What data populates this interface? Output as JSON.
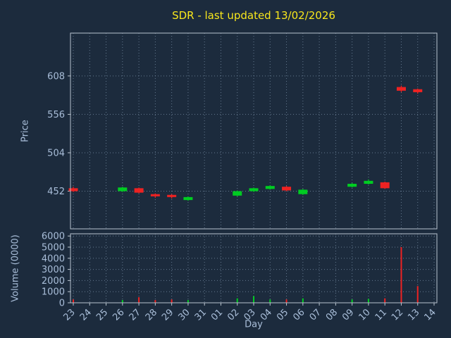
{
  "colors": {
    "background": "#1c2b3d",
    "title": "#f8e71c",
    "text": "#a9bed9",
    "grid": "#7d93ab",
    "spine": "#b9c3ce",
    "up": "#00cc22",
    "down": "#ee2222"
  },
  "chart_data": {
    "type": "candlestick",
    "title": "SDR - last updated 13/02/2026",
    "xlabel": "Day",
    "ylabel_price": "Price",
    "ylabel_volume": "Volume (0000)",
    "x_ticklabels": [
      "23",
      "24",
      "25",
      "26",
      "27",
      "28",
      "29",
      "30",
      "31",
      "01",
      "02",
      "03",
      "04",
      "05",
      "06",
      "07",
      "08",
      "09",
      "10",
      "11",
      "12",
      "13",
      "14"
    ],
    "price_ticks": [
      452,
      504,
      556,
      608
    ],
    "price_ylim": [
      401,
      666
    ],
    "volume_ticks": [
      0,
      1000,
      2000,
      3000,
      4000,
      5000,
      6000
    ],
    "volume_ylim": [
      0,
      6200
    ],
    "grid": true,
    "legend": "none",
    "candles": [
      {
        "day": "23",
        "open": 456,
        "high": 458,
        "low": 451,
        "close": 452,
        "volume": 300
      },
      {
        "day": "26",
        "open": 452,
        "high": 458,
        "low": 451,
        "close": 457,
        "volume": 250
      },
      {
        "day": "27",
        "open": 456,
        "high": 457,
        "low": 449,
        "close": 450,
        "volume": 500
      },
      {
        "day": "28",
        "open": 448,
        "high": 449,
        "low": 443,
        "close": 445,
        "volume": 250
      },
      {
        "day": "29",
        "open": 447,
        "high": 448,
        "low": 442,
        "close": 444,
        "volume": 300
      },
      {
        "day": "30",
        "open": 440,
        "high": 445,
        "low": 439,
        "close": 444,
        "volume": 250
      },
      {
        "day": "02",
        "open": 446,
        "high": 453,
        "low": 445,
        "close": 452,
        "volume": 400
      },
      {
        "day": "03",
        "open": 452,
        "high": 457,
        "low": 451,
        "close": 456,
        "volume": 600
      },
      {
        "day": "04",
        "open": 455,
        "high": 460,
        "low": 454,
        "close": 459,
        "volume": 300
      },
      {
        "day": "05",
        "open": 458,
        "high": 459,
        "low": 452,
        "close": 453,
        "volume": 300
      },
      {
        "day": "06",
        "open": 448,
        "high": 455,
        "low": 447,
        "close": 454,
        "volume": 400
      },
      {
        "day": "09",
        "open": 458,
        "high": 463,
        "low": 457,
        "close": 462,
        "volume": 300
      },
      {
        "day": "10",
        "open": 462,
        "high": 468,
        "low": 461,
        "close": 466,
        "volume": 350
      },
      {
        "day": "11",
        "open": 464,
        "high": 465,
        "low": 455,
        "close": 456,
        "volume": 400
      },
      {
        "day": "12",
        "open": 593,
        "high": 595,
        "low": 586,
        "close": 588,
        "volume": 5000
      },
      {
        "day": "13",
        "open": 590,
        "high": 591,
        "low": 584,
        "close": 586,
        "volume": 1500
      }
    ]
  }
}
